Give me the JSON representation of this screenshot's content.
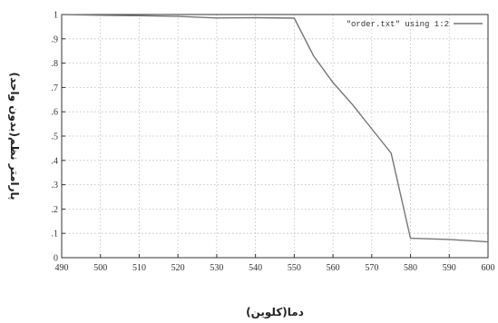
{
  "chart_data": {
    "type": "line",
    "xlabel": "دما(کلوین)",
    "ylabel": "پارامتر نظم(بدون واحد)",
    "xlim": [
      490,
      600
    ],
    "ylim": [
      0,
      1
    ],
    "xticks": [
      490,
      500,
      510,
      520,
      530,
      540,
      550,
      560,
      570,
      580,
      590,
      600
    ],
    "yticks": [
      0,
      0.1,
      0.2,
      0.3,
      0.4,
      0.5,
      0.6,
      0.7,
      0.8,
      0.9,
      1
    ],
    "ytick_labels": [
      "0",
      ".1",
      ".2",
      ".3",
      ".4",
      ".5",
      ".6",
      ".7",
      ".8",
      ".9",
      "1"
    ],
    "grid": true,
    "legend_position": "top-right",
    "series": [
      {
        "name": "\"order.txt\" using 1:2",
        "color": "#777777",
        "x": [
          490,
          500,
          510,
          520,
          530,
          540,
          550,
          555,
          560,
          565,
          570,
          575,
          580,
          590,
          600
        ],
        "y": [
          1.0,
          0.997,
          0.995,
          0.992,
          0.986,
          0.987,
          0.985,
          0.83,
          0.72,
          0.63,
          0.53,
          0.43,
          0.08,
          0.075,
          0.065
        ]
      }
    ]
  }
}
